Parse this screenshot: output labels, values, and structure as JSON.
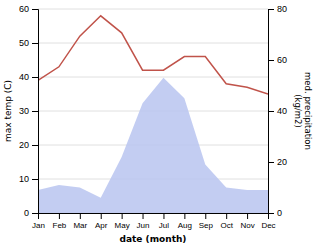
{
  "chart_data": {
    "type": "line",
    "categories": [
      "Jan",
      "Feb",
      "Mar",
      "Apr",
      "May",
      "Jun",
      "Jul",
      "Aug",
      "Sep",
      "Oct",
      "Nov",
      "Dec"
    ],
    "series": [
      {
        "type": "area",
        "axis": "y2",
        "color": "#b8c4f0",
        "values": [
          9,
          11,
          10,
          6,
          22,
          43,
          53,
          45,
          19,
          10,
          9,
          9
        ]
      },
      {
        "type": "line",
        "color": "#c0534a",
        "values": [
          39,
          43,
          52,
          58,
          53,
          42,
          42,
          46,
          46,
          38,
          37,
          35
        ]
      }
    ],
    "ylim": [
      0,
      60
    ],
    "yticks": [
      0,
      10,
      20,
      30,
      40,
      50,
      60
    ],
    "y2lim": [
      0,
      80
    ],
    "y2ticks": [
      0,
      20,
      40,
      60,
      80
    ],
    "grid": true,
    "xlabel": "date (month)",
    "ylabel": "max temp (C)",
    "y2label": "med. precipitation\n(kg/m2)"
  }
}
